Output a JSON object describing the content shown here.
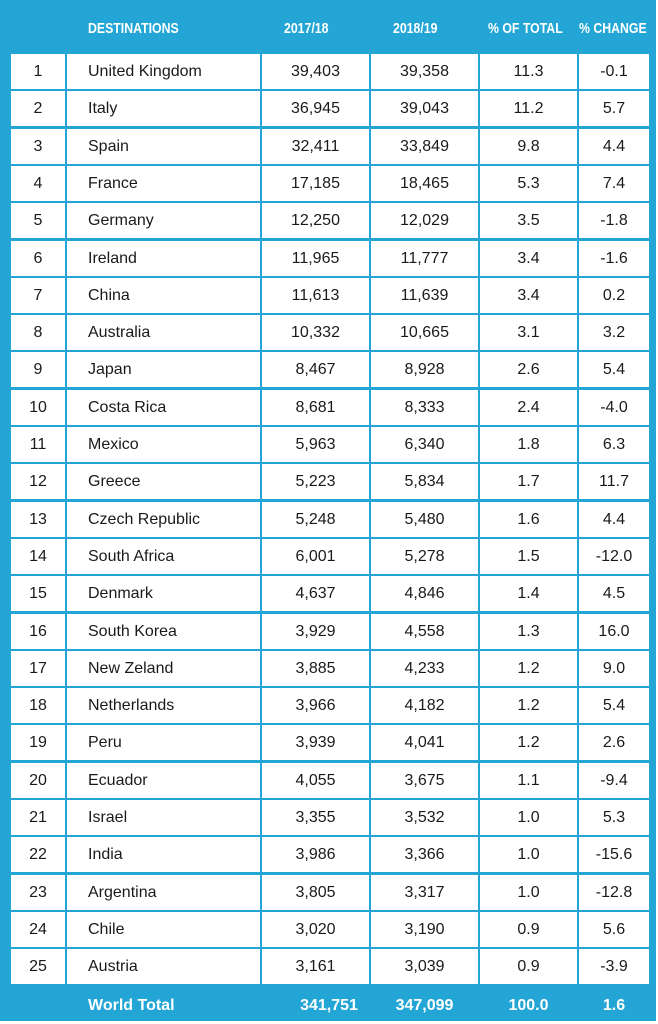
{
  "table": {
    "headers": {
      "rank": "",
      "destinations": "DESTINATIONS",
      "y2017": "2017/18",
      "y2018": "2018/19",
      "pct_total": "% OF TOTAL",
      "pct_change": "% CHANGE"
    },
    "rows": [
      [
        "1",
        "United Kingdom",
        "39,403",
        "39,358",
        "11.3",
        "-0.1"
      ],
      [
        "2",
        "Italy",
        "36,945",
        "39,043",
        "11.2",
        "5.7"
      ],
      [
        "3",
        "Spain",
        "32,411",
        "33,849",
        "9.8",
        "4.4"
      ],
      [
        "4",
        "France",
        "17,185",
        "18,465",
        "5.3",
        "7.4"
      ],
      [
        "5",
        "Germany",
        "12,250",
        "12,029",
        "3.5",
        "-1.8"
      ],
      [
        "6",
        "Ireland",
        "11,965",
        "11,777",
        "3.4",
        "-1.6"
      ],
      [
        "7",
        "China",
        "11,613",
        "11,639",
        "3.4",
        "0.2"
      ],
      [
        "8",
        "Australia",
        "10,332",
        "10,665",
        "3.1",
        "3.2"
      ],
      [
        "9",
        "Japan",
        "8,467",
        "8,928",
        "2.6",
        "5.4"
      ],
      [
        "10",
        "Costa Rica",
        "8,681",
        "8,333",
        "2.4",
        "-4.0"
      ],
      [
        "11",
        "Mexico",
        "5,963",
        "6,340",
        "1.8",
        "6.3"
      ],
      [
        "12",
        "Greece",
        "5,223",
        "5,834",
        "1.7",
        "11.7"
      ],
      [
        "13",
        "Czech Republic",
        "5,248",
        "5,480",
        "1.6",
        "4.4"
      ],
      [
        "14",
        "South Africa",
        "6,001",
        "5,278",
        "1.5",
        "-12.0"
      ],
      [
        "15",
        "Denmark",
        "4,637",
        "4,846",
        "1.4",
        "4.5"
      ],
      [
        "16",
        "South Korea",
        "3,929",
        "4,558",
        "1.3",
        "16.0"
      ],
      [
        "17",
        "New Zeland",
        "3,885",
        "4,233",
        "1.2",
        "9.0"
      ],
      [
        "18",
        "Netherlands",
        "3,966",
        "4,182",
        "1.2",
        "5.4"
      ],
      [
        "19",
        "Peru",
        "3,939",
        "4,041",
        "1.2",
        "2.6"
      ],
      [
        "20",
        "Ecuador",
        "4,055",
        "3,675",
        "1.1",
        "-9.4"
      ],
      [
        "21",
        "Israel",
        "3,355",
        "3,532",
        "1.0",
        "5.3"
      ],
      [
        "22",
        "India",
        "3,986",
        "3,366",
        "1.0",
        "-15.6"
      ],
      [
        "23",
        "Argentina",
        "3,805",
        "3,317",
        "1.0",
        "-12.8"
      ],
      [
        "24",
        "Chile",
        "3,020",
        "3,190",
        "0.9",
        "5.6"
      ],
      [
        "25",
        "Austria",
        "3,161",
        "3,039",
        "0.9",
        "-3.9"
      ]
    ],
    "total": {
      "label": "World Total",
      "y2017": "341,751",
      "y2018": "347,099",
      "pct_total": "100.0",
      "pct_change": "1.6"
    }
  },
  "colors": {
    "accent": "#23a6d5",
    "cell_bg": "#ffffff",
    "text": "#1a1a1a"
  },
  "chart_data": {
    "type": "table",
    "title": "",
    "columns": [
      "",
      "DESTINATIONS",
      "2017/18",
      "2018/19",
      "% OF TOTAL",
      "% CHANGE"
    ],
    "rows": [
      [
        1,
        "United Kingdom",
        39403,
        39358,
        11.3,
        -0.1
      ],
      [
        2,
        "Italy",
        36945,
        39043,
        11.2,
        5.7
      ],
      [
        3,
        "Spain",
        32411,
        33849,
        9.8,
        4.4
      ],
      [
        4,
        "France",
        17185,
        18465,
        5.3,
        7.4
      ],
      [
        5,
        "Germany",
        12250,
        12029,
        3.5,
        -1.8
      ],
      [
        6,
        "Ireland",
        11965,
        11777,
        3.4,
        -1.6
      ],
      [
        7,
        "China",
        11613,
        11639,
        3.4,
        0.2
      ],
      [
        8,
        "Australia",
        10332,
        10665,
        3.1,
        3.2
      ],
      [
        9,
        "Japan",
        8467,
        8928,
        2.6,
        5.4
      ],
      [
        10,
        "Costa Rica",
        8681,
        8333,
        2.4,
        -4.0
      ],
      [
        11,
        "Mexico",
        5963,
        6340,
        1.8,
        6.3
      ],
      [
        12,
        "Greece",
        5223,
        5834,
        1.7,
        11.7
      ],
      [
        13,
        "Czech Republic",
        5248,
        5480,
        1.6,
        4.4
      ],
      [
        14,
        "South Africa",
        6001,
        5278,
        1.5,
        -12.0
      ],
      [
        15,
        "Denmark",
        4637,
        4846,
        1.4,
        4.5
      ],
      [
        16,
        "South Korea",
        3929,
        4558,
        1.3,
        16.0
      ],
      [
        17,
        "New Zeland",
        3885,
        4233,
        1.2,
        9.0
      ],
      [
        18,
        "Netherlands",
        3966,
        4182,
        1.2,
        5.4
      ],
      [
        19,
        "Peru",
        3939,
        4041,
        1.2,
        2.6
      ],
      [
        20,
        "Ecuador",
        4055,
        3675,
        1.1,
        -9.4
      ],
      [
        21,
        "Israel",
        3355,
        3532,
        1.0,
        5.3
      ],
      [
        22,
        "India",
        3986,
        3366,
        1.0,
        -15.6
      ],
      [
        23,
        "Argentina",
        3805,
        3317,
        1.0,
        -12.8
      ],
      [
        24,
        "Chile",
        3020,
        3190,
        0.9,
        5.6
      ],
      [
        25,
        "Austria",
        3161,
        3039,
        0.9,
        -3.9
      ]
    ],
    "total": [
      "World Total",
      341751,
      347099,
      100.0,
      1.6
    ]
  }
}
